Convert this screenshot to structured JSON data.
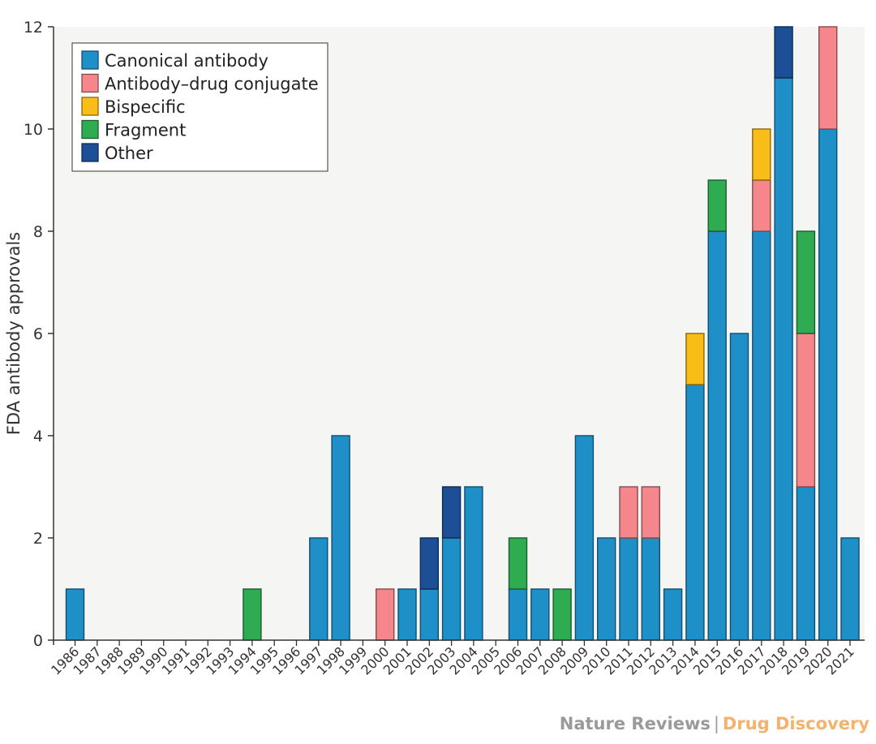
{
  "chart_data": {
    "type": "bar",
    "stacked": true,
    "title": "",
    "xlabel": "",
    "ylabel": "FDA antibody approvals",
    "ylim": [
      0,
      12
    ],
    "yticks": [
      0,
      2,
      4,
      6,
      8,
      10,
      12
    ],
    "grid": false,
    "legend_position": "top-left",
    "categories": [
      "1986",
      "1987",
      "1988",
      "1989",
      "1990",
      "1991",
      "1992",
      "1993",
      "1994",
      "1995",
      "1996",
      "1997",
      "1998",
      "1999",
      "2000",
      "2001",
      "2002",
      "2003",
      "2004",
      "2005",
      "2006",
      "2007",
      "2008",
      "2009",
      "2010",
      "2011",
      "2012",
      "2013",
      "2014",
      "2015",
      "2016",
      "2017",
      "2018",
      "2019",
      "2020",
      "2021"
    ],
    "series": [
      {
        "name": "Canonical antibody",
        "color": "#1f8fc8",
        "values": [
          1,
          0,
          0,
          0,
          0,
          0,
          0,
          0,
          0,
          0,
          0,
          2,
          4,
          0,
          0,
          1,
          1,
          2,
          3,
          0,
          1,
          1,
          0,
          4,
          2,
          2,
          2,
          1,
          5,
          8,
          6,
          8,
          11,
          3,
          10,
          2
        ]
      },
      {
        "name": "Antibody–drug conjugate",
        "color": "#f4868c",
        "values": [
          0,
          0,
          0,
          0,
          0,
          0,
          0,
          0,
          0,
          0,
          0,
          0,
          0,
          0,
          1,
          0,
          0,
          0,
          0,
          0,
          0,
          0,
          0,
          0,
          0,
          1,
          1,
          0,
          0,
          0,
          0,
          1,
          0,
          3,
          2,
          0
        ]
      },
      {
        "name": "Bispecific",
        "color": "#f9bd18",
        "values": [
          0,
          0,
          0,
          0,
          0,
          0,
          0,
          0,
          0,
          0,
          0,
          0,
          0,
          0,
          0,
          0,
          0,
          0,
          0,
          0,
          0,
          0,
          0,
          0,
          0,
          0,
          0,
          0,
          1,
          0,
          0,
          1,
          0,
          0,
          0,
          0
        ]
      },
      {
        "name": "Fragment",
        "color": "#2fab52",
        "values": [
          0,
          0,
          0,
          0,
          0,
          0,
          0,
          0,
          1,
          0,
          0,
          0,
          0,
          0,
          0,
          0,
          0,
          0,
          0,
          0,
          1,
          0,
          1,
          0,
          0,
          0,
          0,
          0,
          0,
          1,
          0,
          0,
          0,
          2,
          0,
          0
        ]
      },
      {
        "name": "Other",
        "color": "#1d4f96",
        "values": [
          0,
          0,
          0,
          0,
          0,
          0,
          0,
          0,
          0,
          0,
          0,
          0,
          0,
          0,
          0,
          0,
          1,
          1,
          0,
          0,
          0,
          0,
          0,
          0,
          0,
          0,
          0,
          0,
          0,
          0,
          0,
          0,
          1,
          0,
          0,
          0
        ]
      }
    ]
  },
  "credit": {
    "publisher": "Nature Reviews",
    "separator": "|",
    "journal": "Drug Discovery"
  }
}
